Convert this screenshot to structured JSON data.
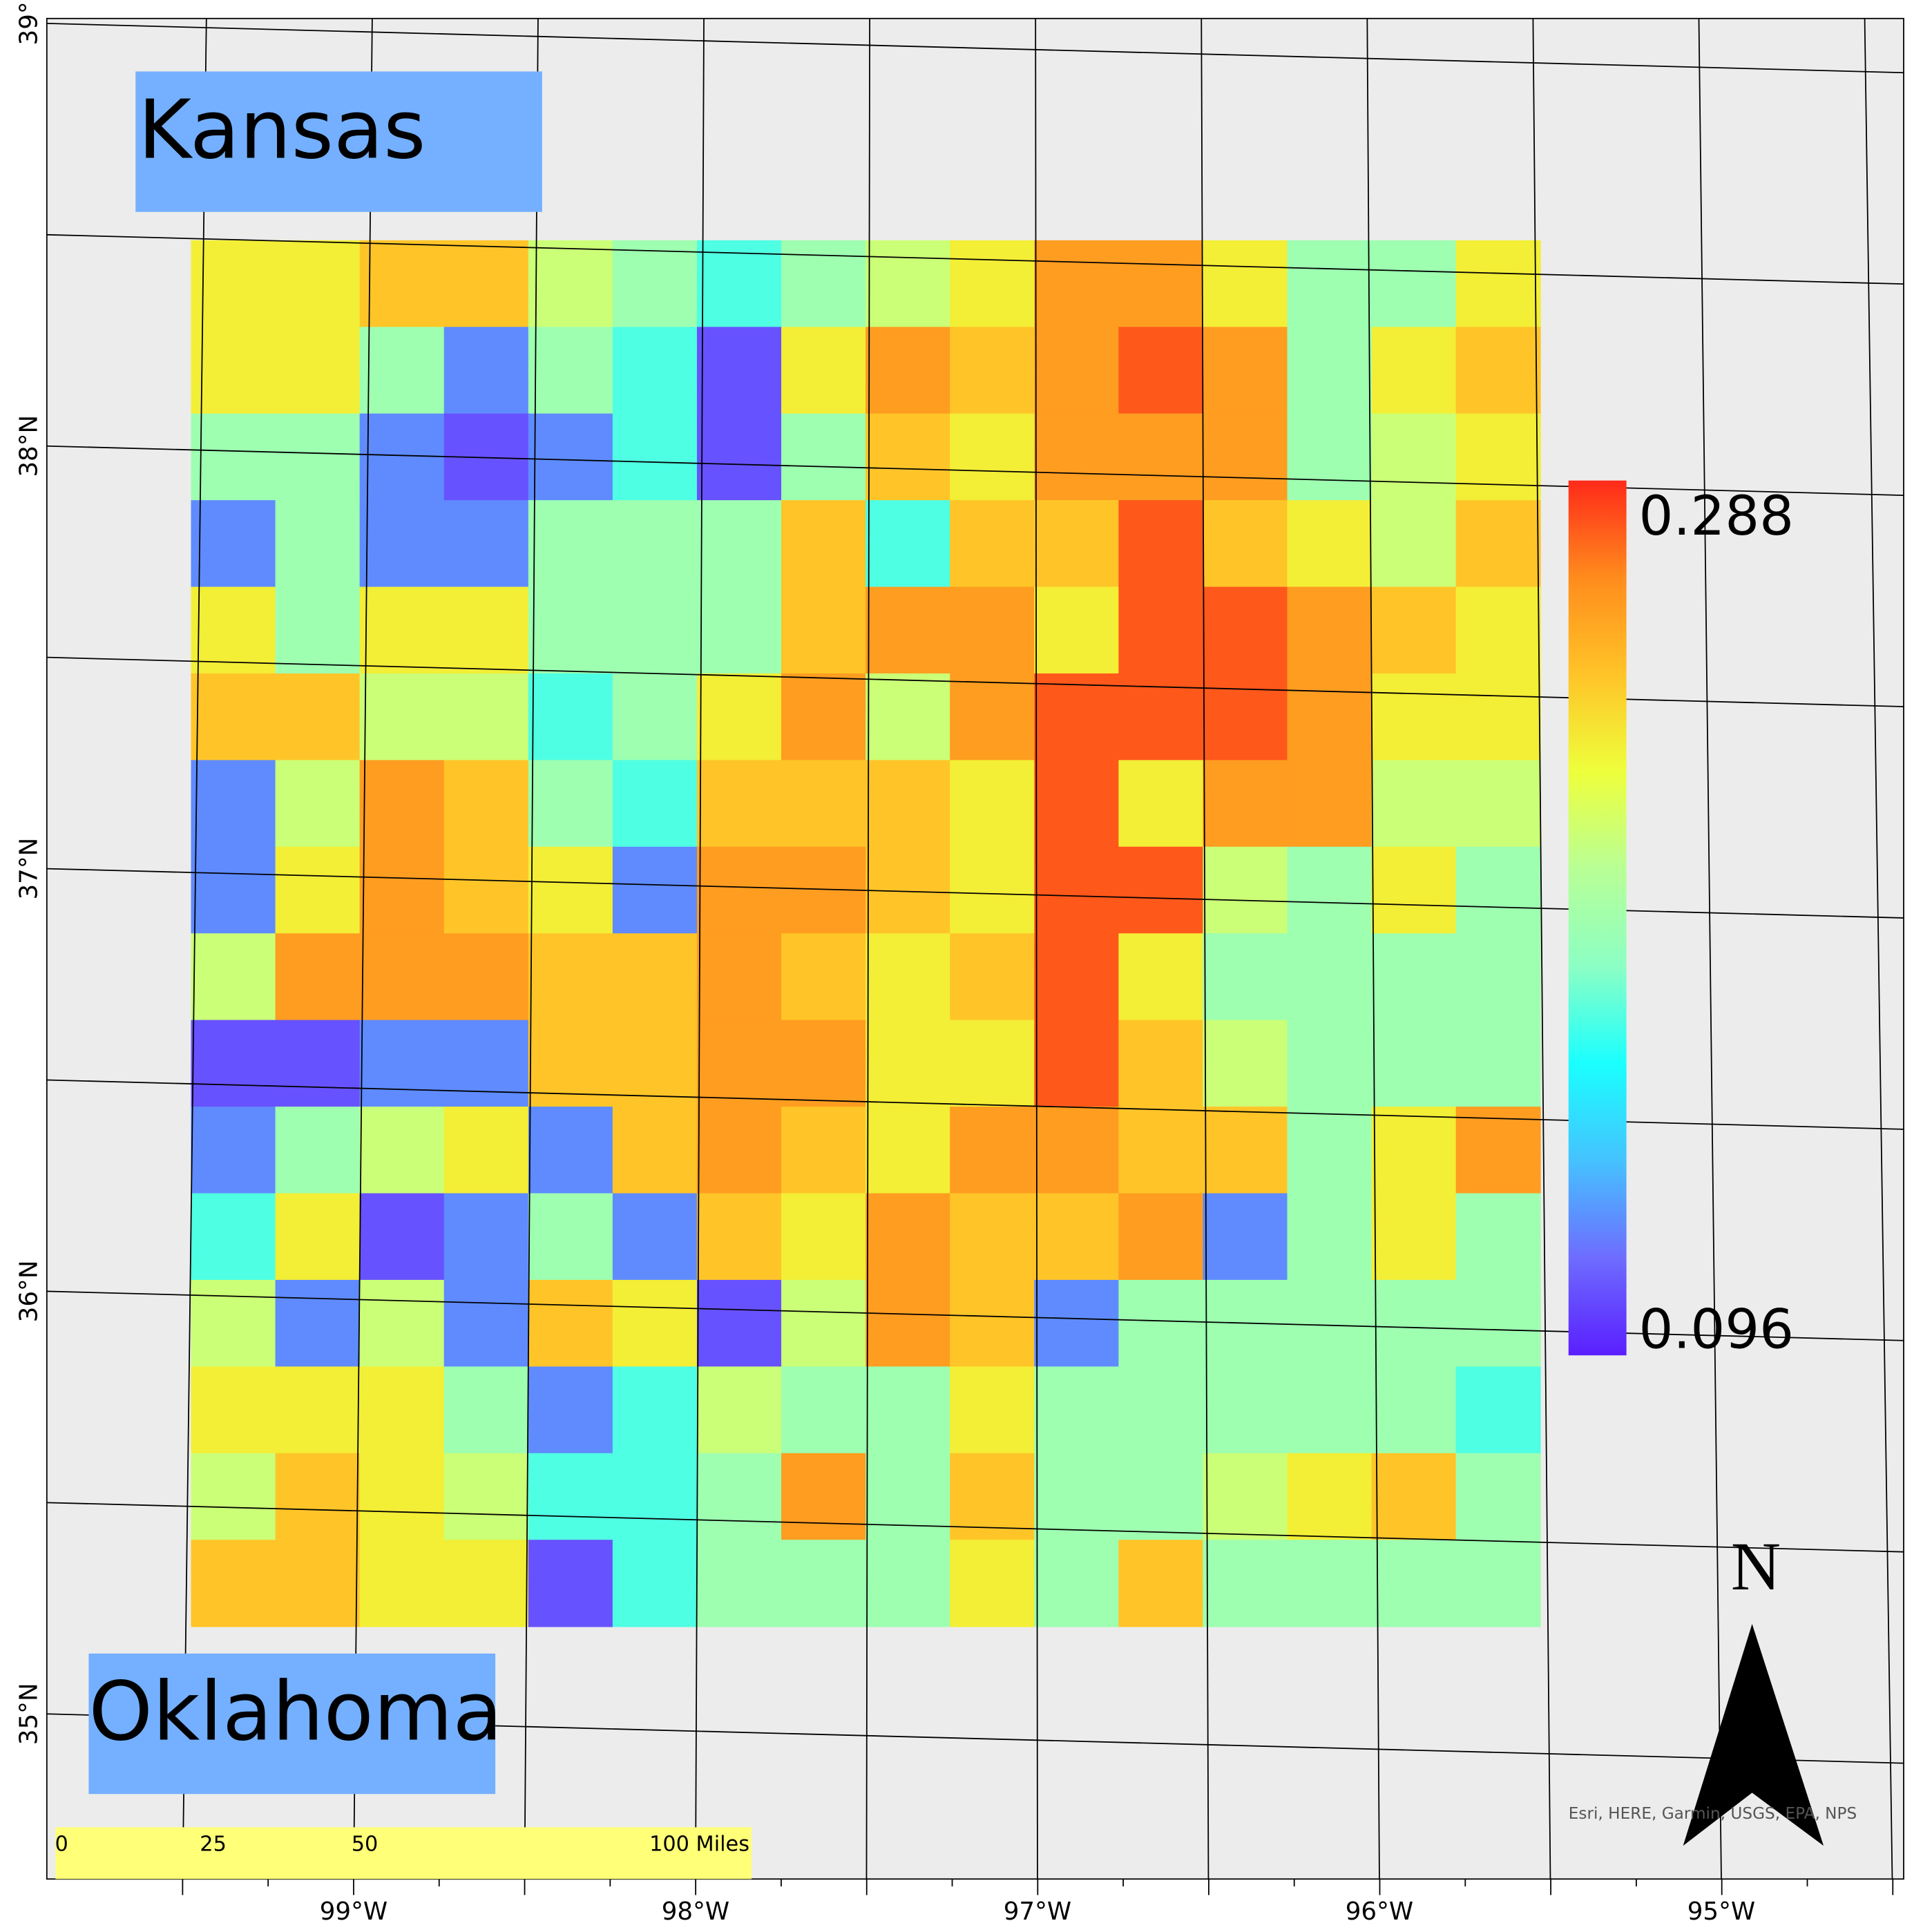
{
  "map": {
    "labels": {
      "kansas": "Kansas",
      "oklahoma": "Oklahoma"
    },
    "legend": {
      "max": 0.288,
      "min": 0.096,
      "colors": [
        "#5a1fff",
        "#6e6cff",
        "#45c2ff",
        "#1affff",
        "#8cffc4",
        "#b8ff96",
        "#eeff3c",
        "#ffc428",
        "#ff8c1c",
        "#ff2a1a"
      ]
    },
    "north": "N",
    "attribution": "Esri, HERE, Garmin, USGS, EPA, NPS",
    "scale_bar": {
      "ticks": [
        0,
        25,
        50,
        {
          "value": 100,
          "label": "100 Miles"
        }
      ]
    },
    "graticule": {
      "lat": [
        "39°",
        "38°N",
        "37°N",
        "36°N",
        "35°N"
      ],
      "lon": [
        "99°W",
        "98°W",
        "97°W",
        "96°W",
        "95°W"
      ]
    },
    "raster": {
      "values": [
        [
          0.23,
          0.23,
          0.245,
          0.245,
          0.21,
          0.19,
          0.17,
          0.19,
          0.21,
          0.23,
          0.26,
          0.26,
          0.23,
          0.19,
          0.19,
          0.23
        ],
        [
          0.23,
          0.23,
          0.19,
          0.125,
          0.19,
          0.17,
          0.11,
          0.23,
          0.26,
          0.245,
          0.26,
          0.278,
          0.26,
          0.19,
          0.23,
          0.245
        ],
        [
          0.19,
          0.19,
          0.125,
          0.11,
          0.125,
          0.17,
          0.11,
          0.19,
          0.245,
          0.23,
          0.26,
          0.26,
          0.26,
          0.19,
          0.21,
          0.23
        ],
        [
          0.125,
          0.19,
          0.125,
          0.125,
          0.19,
          0.19,
          0.19,
          0.245,
          0.17,
          0.245,
          0.245,
          0.278,
          0.245,
          0.23,
          0.21,
          0.245
        ],
        [
          0.23,
          0.19,
          0.23,
          0.23,
          0.19,
          0.19,
          0.19,
          0.245,
          0.26,
          0.26,
          0.23,
          0.278,
          0.278,
          0.26,
          0.245,
          0.23
        ],
        [
          0.245,
          0.245,
          0.21,
          0.21,
          0.17,
          0.19,
          0.23,
          0.26,
          0.21,
          0.26,
          0.278,
          0.278,
          0.278,
          0.26,
          0.23,
          0.23
        ],
        [
          0.125,
          0.21,
          0.26,
          0.245,
          0.19,
          0.17,
          0.245,
          0.245,
          0.245,
          0.23,
          0.278,
          0.23,
          0.26,
          0.26,
          0.21,
          0.21
        ],
        [
          0.125,
          0.23,
          0.26,
          0.245,
          0.23,
          0.125,
          0.26,
          0.26,
          0.245,
          0.23,
          0.278,
          0.278,
          0.21,
          0.19,
          0.23,
          0.19
        ],
        [
          0.21,
          0.26,
          0.26,
          0.26,
          0.245,
          0.245,
          0.26,
          0.245,
          0.23,
          0.245,
          0.278,
          0.23,
          0.19,
          0.19,
          0.19,
          0.19
        ],
        [
          0.11,
          0.11,
          0.125,
          0.125,
          0.245,
          0.245,
          0.26,
          0.26,
          0.23,
          0.23,
          0.278,
          0.245,
          0.21,
          0.19,
          0.19,
          0.19
        ],
        [
          0.125,
          0.19,
          0.21,
          0.23,
          0.125,
          0.245,
          0.26,
          0.245,
          0.23,
          0.26,
          0.26,
          0.245,
          0.245,
          0.19,
          0.23,
          0.26
        ],
        [
          0.17,
          0.23,
          0.11,
          0.125,
          0.19,
          0.125,
          0.245,
          0.23,
          0.26,
          0.245,
          0.245,
          0.26,
          0.125,
          0.19,
          0.23,
          0.19
        ],
        [
          0.21,
          0.125,
          0.21,
          0.125,
          0.245,
          0.23,
          0.11,
          0.21,
          0.26,
          0.245,
          0.125,
          0.19,
          0.19,
          0.19,
          0.19,
          0.19
        ],
        [
          0.23,
          0.23,
          0.23,
          0.19,
          0.125,
          0.17,
          0.21,
          0.19,
          0.19,
          0.23,
          0.19,
          0.19,
          0.19,
          0.19,
          0.19,
          0.17
        ],
        [
          0.21,
          0.245,
          0.23,
          0.21,
          0.17,
          0.17,
          0.19,
          0.26,
          0.19,
          0.245,
          0.19,
          0.19,
          0.21,
          0.23,
          0.245,
          0.19
        ],
        [
          0.245,
          0.245,
          0.23,
          0.23,
          0.11,
          0.17,
          0.19,
          0.19,
          0.19,
          0.23,
          0.19,
          0.245,
          0.19,
          0.19,
          0.19,
          0.19
        ]
      ]
    }
  }
}
